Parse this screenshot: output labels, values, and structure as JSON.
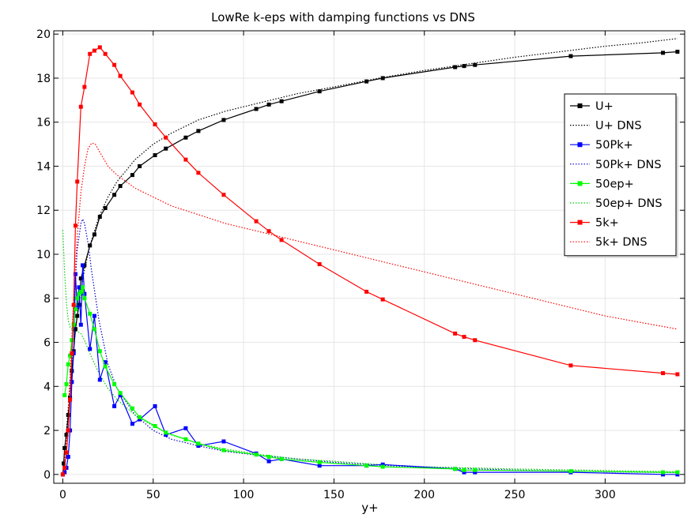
{
  "chart_data": {
    "type": "line",
    "title": "LowRe k-eps with damping functions vs DNS",
    "xlabel": "y+",
    "ylabel": "",
    "xlim": [
      -5,
      344
    ],
    "ylim": [
      -0.4,
      20.15
    ],
    "xticks": [
      0,
      50,
      100,
      150,
      200,
      250,
      300
    ],
    "yticks": [
      0,
      2,
      4,
      6,
      8,
      10,
      12,
      14,
      16,
      18,
      20
    ],
    "grid": true,
    "legend_position": "top-right",
    "series": [
      {
        "name": "U+",
        "color": "#000000",
        "style": "solid",
        "markers": true,
        "x": [
          0,
          0.5,
          1,
          2,
          3,
          4,
          5,
          6,
          7,
          8,
          9,
          10,
          12,
          15,
          17.5,
          20.5,
          23.5,
          28.5,
          31.8,
          38.5,
          42.5,
          51,
          57,
          68,
          75,
          89,
          107,
          114,
          121,
          142,
          168,
          177,
          217,
          222,
          228,
          281,
          332,
          340
        ],
        "y": [
          0,
          0.5,
          1.2,
          1.8,
          2.7,
          3.5,
          4.7,
          5.6,
          6.6,
          7.2,
          7.7,
          8.9,
          9.5,
          10.4,
          10.9,
          11.7,
          12.1,
          12.7,
          13.1,
          13.6,
          14.0,
          14.5,
          14.8,
          15.3,
          15.6,
          16.1,
          16.6,
          16.8,
          16.95,
          17.4,
          17.85,
          18.0,
          18.5,
          18.55,
          18.6,
          19.0,
          19.15,
          19.2
        ]
      },
      {
        "name": "U+ DNS",
        "color": "#000000",
        "style": "dotted",
        "markers": false,
        "x": [
          0,
          2,
          4,
          6,
          8,
          10,
          12,
          15,
          20,
          25,
          30,
          40,
          50,
          60,
          75,
          90,
          110,
          130,
          150,
          175,
          200,
          225,
          250,
          275,
          300,
          320,
          340
        ],
        "y": [
          0,
          2.0,
          4.0,
          5.8,
          7.2,
          8.3,
          9.3,
          10.4,
          11.7,
          12.6,
          13.3,
          14.3,
          15.0,
          15.5,
          16.1,
          16.5,
          16.9,
          17.3,
          17.6,
          18.0,
          18.35,
          18.65,
          18.95,
          19.2,
          19.45,
          19.6,
          19.8
        ]
      },
      {
        "name": "50Pk+",
        "color": "#0000ff",
        "style": "solid",
        "markers": true,
        "x": [
          0,
          1,
          2,
          3,
          4,
          5,
          6,
          7,
          8,
          9,
          10,
          11,
          12,
          15,
          17.5,
          20.5,
          23.5,
          28.5,
          31.8,
          38.5,
          42.5,
          51,
          57,
          68,
          75,
          89,
          107,
          114,
          121,
          142,
          168,
          177,
          217,
          222,
          228,
          281,
          332,
          340
        ],
        "y": [
          0,
          0.1,
          0.3,
          0.8,
          2.0,
          4.2,
          5.5,
          9.1,
          7.6,
          8.5,
          6.8,
          9.5,
          8.2,
          5.7,
          7.2,
          4.3,
          5.1,
          3.1,
          3.6,
          2.3,
          2.5,
          3.1,
          1.8,
          2.1,
          1.3,
          1.5,
          0.95,
          0.6,
          0.7,
          0.4,
          0.4,
          0.45,
          0.25,
          0.1,
          0.1,
          0.1,
          0.0,
          0.0
        ]
      },
      {
        "name": "50Pk+ DNS",
        "color": "#0000cc",
        "style": "dotted",
        "markers": false,
        "x": [
          0,
          2,
          4,
          6,
          8,
          10,
          11,
          12,
          14,
          16,
          20,
          25,
          30,
          40,
          50,
          60,
          75,
          90,
          110,
          130,
          150,
          175,
          200,
          250,
          300,
          340
        ],
        "y": [
          0,
          1.0,
          4.0,
          7.5,
          10.2,
          11.4,
          11.6,
          11.4,
          10.5,
          9.2,
          7.0,
          5.0,
          3.9,
          2.7,
          2.0,
          1.6,
          1.3,
          1.05,
          0.85,
          0.7,
          0.55,
          0.42,
          0.32,
          0.2,
          0.12,
          0.08
        ]
      },
      {
        "name": "50ep+",
        "color": "#00ff00",
        "style": "solid",
        "markers": true,
        "x": [
          1,
          2,
          3,
          4,
          5,
          6,
          7,
          8,
          9,
          10,
          11,
          12,
          15,
          17.5,
          20.5,
          23.5,
          28.5,
          31.8,
          38.5,
          42.5,
          51,
          57,
          68,
          75,
          89,
          107,
          114,
          121,
          142,
          168,
          177,
          217,
          222,
          228,
          281,
          332,
          340
        ],
        "y": [
          3.6,
          4.1,
          5.0,
          5.4,
          6.1,
          6.8,
          7.5,
          8.0,
          8.2,
          8.3,
          8.5,
          8.0,
          7.3,
          6.6,
          5.6,
          4.9,
          4.1,
          3.7,
          3.0,
          2.6,
          2.2,
          1.9,
          1.6,
          1.4,
          1.1,
          0.9,
          0.8,
          0.7,
          0.55,
          0.4,
          0.35,
          0.25,
          0.2,
          0.2,
          0.15,
          0.1,
          0.1
        ]
      },
      {
        "name": "50ep+ DNS",
        "color": "#00cc00",
        "style": "dotted",
        "markers": false,
        "x": [
          0,
          1,
          2,
          3,
          4,
          6,
          8,
          10,
          12,
          14,
          16,
          20,
          25,
          30,
          40,
          50,
          60,
          75,
          90,
          110,
          130,
          150,
          175,
          200,
          250,
          300,
          340
        ],
        "y": [
          11.1,
          9.2,
          7.8,
          7.0,
          6.7,
          6.5,
          6.5,
          6.4,
          6.1,
          5.7,
          5.3,
          4.6,
          3.9,
          3.4,
          2.7,
          2.2,
          1.8,
          1.4,
          1.15,
          0.9,
          0.7,
          0.6,
          0.45,
          0.35,
          0.25,
          0.18,
          0.12
        ]
      },
      {
        "name": "5k+",
        "color": "#ff0000",
        "style": "solid",
        "markers": true,
        "x": [
          0,
          1,
          2,
          3,
          4,
          5,
          6,
          7,
          8,
          10,
          12,
          15,
          17.5,
          20.5,
          23.5,
          28.5,
          31.8,
          38.5,
          42.5,
          51,
          57,
          68,
          75,
          89,
          107,
          114,
          121,
          142,
          168,
          177,
          217,
          222,
          228,
          281,
          332,
          340
        ],
        "y": [
          0,
          0.3,
          1.0,
          2.0,
          3.4,
          5.5,
          7.7,
          11.3,
          13.3,
          16.7,
          17.6,
          19.1,
          19.25,
          19.4,
          19.1,
          18.6,
          18.1,
          17.35,
          16.8,
          15.9,
          15.3,
          14.3,
          13.7,
          12.7,
          11.5,
          11.05,
          10.65,
          9.55,
          8.3,
          7.95,
          6.4,
          6.25,
          6.1,
          4.95,
          4.6,
          4.55
        ]
      },
      {
        "name": "5k+ DNS",
        "color": "#ff0000",
        "style": "dotted",
        "markers": false,
        "x": [
          0,
          2,
          4,
          6,
          8,
          10,
          12,
          14,
          16,
          18,
          20,
          25,
          30,
          40,
          50,
          60,
          75,
          90,
          110,
          130,
          150,
          175,
          200,
          225,
          250,
          275,
          300,
          320,
          340
        ],
        "y": [
          0,
          1.5,
          4.5,
          8.0,
          10.8,
          12.8,
          14.0,
          14.8,
          15.05,
          15.0,
          14.7,
          14.0,
          13.6,
          13.0,
          12.6,
          12.2,
          11.8,
          11.4,
          11.0,
          10.6,
          10.2,
          9.7,
          9.2,
          8.7,
          8.2,
          7.7,
          7.2,
          6.9,
          6.6
        ]
      }
    ]
  }
}
